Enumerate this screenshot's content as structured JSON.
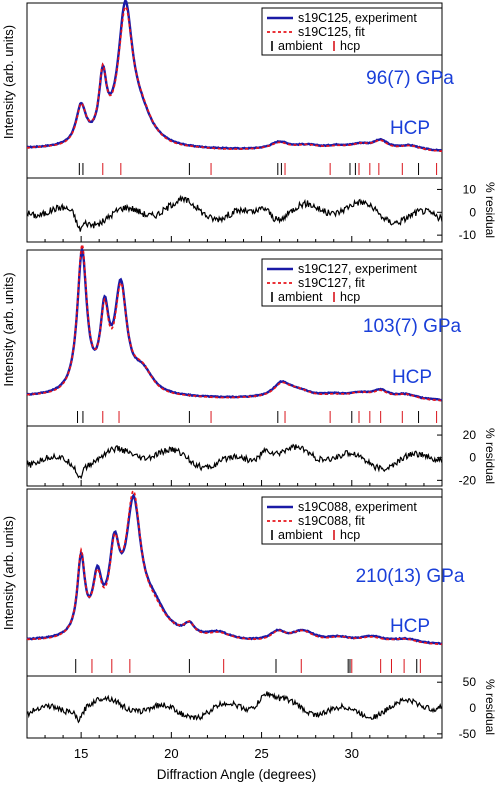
{
  "chart_data": {
    "type": "line",
    "xlabel": "Diffraction Angle (degrees)",
    "xlim": [
      12,
      35
    ],
    "xticks": [
      15,
      20,
      25,
      30
    ],
    "colors": {
      "experiment": "#1a1aa6",
      "fit": "#e8141b",
      "ambient": "#000000",
      "hcp": "#d9141b",
      "annotation": "#1a3fd9"
    },
    "panels": [
      {
        "ylabel": "Intensity (arb. units)",
        "annotation_pressure": "96(7) GPa",
        "annotation_phase": "HCP",
        "series": [
          {
            "name": "s19C125, experiment",
            "style": "solid"
          },
          {
            "name": "s19C125, fit",
            "style": "dashed"
          }
        ],
        "tick_series": [
          {
            "name": "ambient",
            "positions": [
              14.9,
              15.1,
              21.0,
              25.9,
              26.1,
              29.9,
              30.2,
              33.7
            ]
          },
          {
            "name": "hcp",
            "positions": [
              16.2,
              17.2,
              22.2,
              26.3,
              28.8,
              30.4,
              31.0,
              31.5,
              32.8,
              34.7
            ]
          }
        ],
        "peaks": [
          [
            15.0,
            0.26,
            0.33
          ],
          [
            16.2,
            0.42,
            0.25
          ],
          [
            17.45,
            0.92,
            0.48
          ],
          [
            18.3,
            0.18,
            0.8
          ],
          [
            26.0,
            0.05,
            0.6
          ],
          [
            27.5,
            0.03,
            0.9
          ],
          [
            29.2,
            0.025,
            0.8
          ],
          [
            30.5,
            0.035,
            0.7
          ],
          [
            31.6,
            0.06,
            0.5
          ],
          [
            33.2,
            0.035,
            0.8
          ]
        ],
        "baseline": [
          0.02,
          0.004
        ],
        "ylim": [
          -0.06,
          1.0
        ],
        "residual": {
          "ylabel": "% residual",
          "ticks": [
            10,
            0,
            -10
          ],
          "ylim": [
            -13,
            15
          ],
          "amp": 5
        }
      },
      {
        "ylabel": "Intensity (arb. units)",
        "annotation_pressure": "103(7) GPa",
        "annotation_phase": "HCP",
        "series": [
          {
            "name": "s19C127, experiment",
            "style": "solid"
          },
          {
            "name": "s19C127, fit",
            "style": "dashed"
          }
        ],
        "tick_series": [
          {
            "name": "ambient",
            "positions": [
              14.8,
              15.1,
              21.0,
              25.9,
              30.0,
              33.7
            ]
          },
          {
            "name": "hcp",
            "positions": [
              16.2,
              17.1,
              22.2,
              26.3,
              28.8,
              30.4,
              31.0,
              31.6,
              32.8,
              34.7
            ]
          }
        ],
        "peaks": [
          [
            15.05,
            0.95,
            0.32
          ],
          [
            16.3,
            0.5,
            0.28
          ],
          [
            17.2,
            0.7,
            0.4
          ],
          [
            18.4,
            0.15,
            0.7
          ],
          [
            26.1,
            0.09,
            0.55
          ],
          [
            27.0,
            0.05,
            0.9
          ],
          [
            29.0,
            0.025,
            0.9
          ],
          [
            30.5,
            0.035,
            0.8
          ],
          [
            31.6,
            0.05,
            0.5
          ],
          [
            33.0,
            0.035,
            0.8
          ]
        ],
        "baseline": [
          0.03,
          0.006
        ],
        "ylim": [
          -0.05,
          1.0
        ],
        "residual": {
          "ylabel": "% residual",
          "ticks": [
            20,
            0,
            -20
          ],
          "ylim": [
            -25,
            28
          ],
          "amp": 9
        }
      },
      {
        "ylabel": "Intensity (arb. units)",
        "annotation_pressure": "210(13) GPa",
        "annotation_phase": "HCP",
        "series": [
          {
            "name": "s19C088, experiment",
            "style": "solid"
          },
          {
            "name": "s19C088, fit",
            "style": "dashed"
          }
        ],
        "tick_series": [
          {
            "name": "ambient",
            "positions": [
              14.7,
              21.0,
              25.8,
              29.8,
              29.9,
              33.6
            ]
          },
          {
            "name": "hcp",
            "positions": [
              15.6,
              16.7,
              17.7,
              22.9,
              27.2,
              30.0,
              31.6,
              32.2,
              32.9,
              33.8
            ]
          }
        ],
        "peaks": [
          [
            15.0,
            0.5,
            0.25
          ],
          [
            15.9,
            0.34,
            0.3
          ],
          [
            16.85,
            0.5,
            0.35
          ],
          [
            17.9,
            0.82,
            0.5
          ],
          [
            19.0,
            0.18,
            0.9
          ],
          [
            21.0,
            0.07,
            0.35
          ],
          [
            22.6,
            0.05,
            0.8
          ],
          [
            25.9,
            0.06,
            0.5
          ],
          [
            27.3,
            0.07,
            0.8
          ],
          [
            29.3,
            0.03,
            0.8
          ],
          [
            31.1,
            0.04,
            0.8
          ],
          [
            33.0,
            0.03,
            0.9
          ]
        ],
        "baseline": [
          0.03,
          0.005
        ],
        "ylim": [
          -0.07,
          1.0
        ],
        "residual": {
          "ylabel": "% residual",
          "ticks": [
            50,
            0,
            -50
          ],
          "ylim": [
            -58,
            62
          ],
          "amp": 18
        }
      }
    ]
  }
}
